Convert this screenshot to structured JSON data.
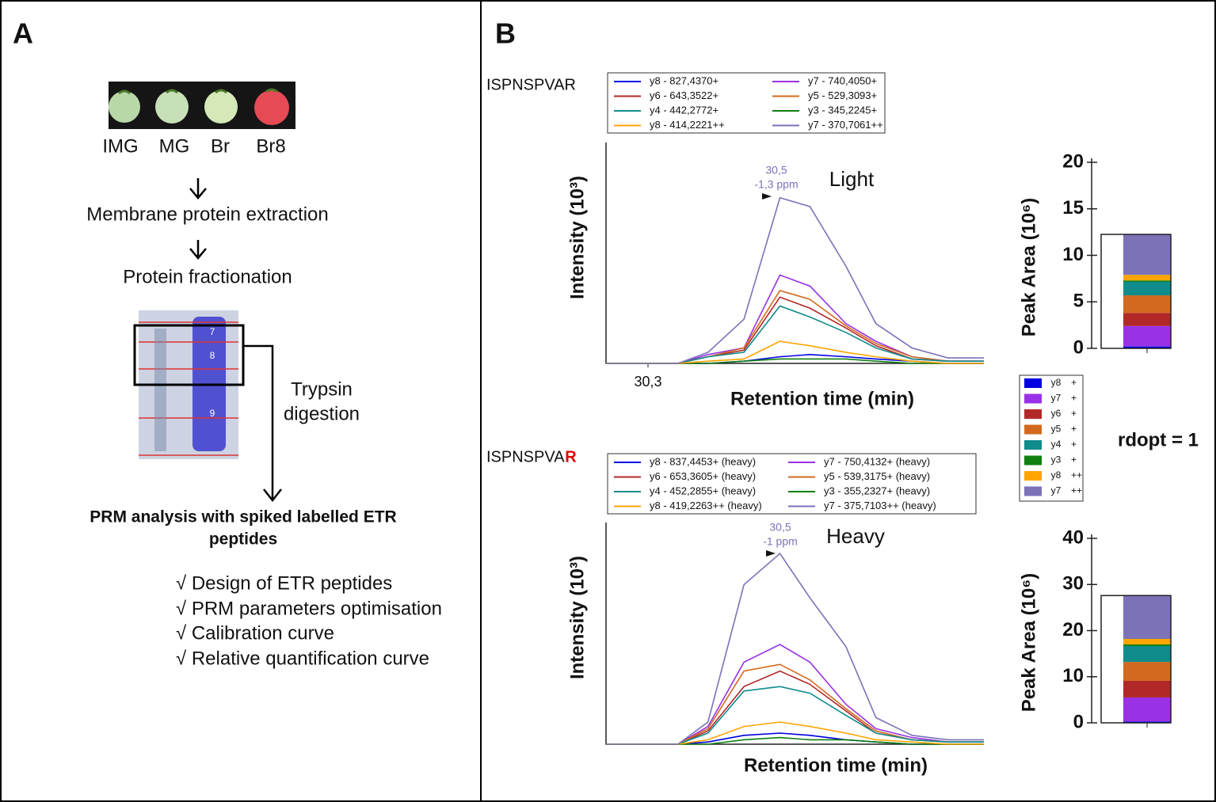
{
  "panel_a": {
    "label": "A",
    "fruit_labels": [
      "IMG",
      "MG",
      "Br",
      "Br8"
    ],
    "steps": [
      "Membrane  protein  extraction",
      "Protein  fractionation"
    ],
    "gel_lanes": [
      "7",
      "8",
      "9"
    ],
    "digestion": [
      "Trypsin",
      "digestion"
    ],
    "analysis": [
      "PRM analysis with spiked labelled ETR",
      "peptides"
    ],
    "checklist": [
      "√ Design of ETR  peptides",
      "√ PRM parameters  optimisation",
      "√ Calibration curve",
      "√ Relative  quantification  curve"
    ]
  },
  "panel_b": {
    "label": "B",
    "ion_legend": [
      {
        "ion": "y8",
        "charge": "+",
        "color": "#0000e0"
      },
      {
        "ion": "y7",
        "charge": "+",
        "color": "#9932e6"
      },
      {
        "ion": "y6",
        "charge": "+",
        "color": "#b22828"
      },
      {
        "ion": "y5",
        "charge": "+",
        "color": "#d2691e"
      },
      {
        "ion": "y4",
        "charge": "+",
        "color": "#108c8c"
      },
      {
        "ion": "y3",
        "charge": "+",
        "color": "#108010"
      },
      {
        "ion": "y8",
        "charge": "++",
        "color": "#ffa500"
      },
      {
        "ion": "y7",
        "charge": "++",
        "color": "#7b72b8"
      }
    ],
    "ratio": "rdopt = 1"
  },
  "chart_data": [
    {
      "type": "line",
      "title": "ISPNSPVAR",
      "annotation_rt": "30,5",
      "annotation_ppm": "-1,3 ppm",
      "annotation_label": "Light",
      "xlabel": "Retention time (min)",
      "ylabel": "Intensity (10³)",
      "x": [
        30.23,
        30.35,
        30.4,
        30.46,
        30.52,
        30.57,
        30.63,
        30.68,
        30.74,
        30.8,
        30.87
      ],
      "xlim": [
        30.23,
        30.86
      ],
      "xticks": [
        {
          "value": 30.3,
          "label": "30,3"
        }
      ],
      "ylim": [
        0,
        100
      ],
      "series": [
        {
          "name": "y8 - 827,4370+",
          "color": "#0000e0",
          "values": [
            0,
            0,
            0,
            1,
            3,
            4,
            3,
            2,
            1,
            0,
            0
          ]
        },
        {
          "name": "y7 - 740,4050+",
          "color": "#9932e6",
          "values": [
            0,
            0,
            4,
            7,
            40,
            35,
            18,
            10,
            3,
            1,
            1
          ]
        },
        {
          "name": "y6 - 643,3522+",
          "color": "#b22828",
          "values": [
            0,
            0,
            3,
            6,
            30,
            25,
            16,
            8,
            2,
            1,
            1
          ]
        },
        {
          "name": "y5 - 529,3093+",
          "color": "#d2691e",
          "values": [
            0,
            0,
            3,
            7,
            33,
            29,
            17,
            9,
            3,
            1,
            1
          ]
        },
        {
          "name": "y4 - 442,2772+",
          "color": "#108c8c",
          "values": [
            0,
            0,
            3,
            5,
            26,
            21,
            14,
            7,
            2,
            1,
            1
          ]
        },
        {
          "name": "y3 - 345,2245+",
          "color": "#108010",
          "values": [
            0,
            0,
            0,
            1,
            2,
            2,
            2,
            1,
            0,
            0,
            0
          ]
        },
        {
          "name": "y8 - 414,2221++",
          "color": "#ffa500",
          "values": [
            0,
            0,
            1,
            2,
            10,
            8,
            5,
            3,
            1,
            0,
            0
          ]
        },
        {
          "name": "y7 - 370,7061++",
          "color": "#7b72b8",
          "values": [
            0,
            0,
            5,
            20,
            75,
            71,
            44,
            18,
            7,
            2.5,
            2.5
          ]
        }
      ]
    },
    {
      "type": "bar",
      "ylabel": "Peak Area (10⁶)",
      "ylim": [
        0,
        20
      ],
      "yticks": [
        0,
        5,
        10,
        15,
        20
      ],
      "series": [
        {
          "color": "#0000e0",
          "values": [
            0.2
          ]
        },
        {
          "color": "#9932e6",
          "values": [
            2.2
          ]
        },
        {
          "color": "#b22828",
          "values": [
            1.4
          ]
        },
        {
          "color": "#d2691e",
          "values": [
            1.9
          ]
        },
        {
          "color": "#108c8c",
          "values": [
            1.45
          ]
        },
        {
          "color": "#108010",
          "values": [
            0.15
          ]
        },
        {
          "color": "#ffa500",
          "values": [
            0.6
          ]
        },
        {
          "color": "#7b72b8",
          "values": [
            4.35
          ]
        }
      ]
    },
    {
      "type": "line",
      "title": "ISPNSPVA",
      "title_suffix": "R",
      "annotation_rt": "30,5",
      "annotation_ppm": "-1 ppm",
      "annotation_label": "Heavy",
      "xlabel": "Retention time (min)",
      "ylabel": "Intensity (10³)",
      "x": [
        30.23,
        30.35,
        30.4,
        30.46,
        30.52,
        30.57,
        30.63,
        30.68,
        30.74,
        30.8,
        30.87
      ],
      "xlim": [
        30.23,
        30.86
      ],
      "ylim": [
        0,
        100
      ],
      "series": [
        {
          "name": "y8 - 837,4453+ (heavy)",
          "color": "#0000e0",
          "values": [
            0,
            0,
            1,
            4,
            5,
            4,
            2,
            1,
            0,
            0,
            0
          ]
        },
        {
          "name": "y7 - 750,4132+ (heavy)",
          "color": "#9932e6",
          "values": [
            0,
            0,
            8,
            37,
            45,
            37,
            18,
            7,
            3,
            1,
            1
          ]
        },
        {
          "name": "y6 - 653,3605+ (heavy)",
          "color": "#b22828",
          "values": [
            0,
            0,
            6,
            26,
            33,
            27,
            15,
            5,
            2,
            1,
            1
          ]
        },
        {
          "name": "y5 - 539,3175+ (heavy)",
          "color": "#d2691e",
          "values": [
            0,
            0,
            7,
            33,
            36,
            29,
            16,
            6,
            2,
            1,
            1
          ]
        },
        {
          "name": "y4 - 452,2855+ (heavy)",
          "color": "#108c8c",
          "values": [
            0,
            0,
            5,
            24,
            26,
            23,
            13,
            5,
            2,
            1,
            1
          ]
        },
        {
          "name": "y3 - 355,2327+ (heavy)",
          "color": "#108010",
          "values": [
            0,
            0,
            0,
            2,
            3,
            2,
            2,
            1,
            0,
            0,
            0
          ]
        },
        {
          "name": "y8 - 419,2263++ (heavy)",
          "color": "#ffa500",
          "values": [
            0,
            0,
            2,
            8,
            10,
            8,
            5,
            2,
            1,
            0,
            0
          ]
        },
        {
          "name": "y7 - 375,7103++ (heavy)",
          "color": "#7b72b8",
          "values": [
            0,
            0,
            10,
            72,
            86,
            66,
            44,
            12,
            4,
            2,
            2
          ]
        }
      ]
    },
    {
      "type": "bar",
      "ylabel": "Peak Area (10⁶)",
      "ylim": [
        0,
        40
      ],
      "yticks": [
        0,
        10,
        20,
        30,
        40
      ],
      "series": [
        {
          "color": "#0000e0",
          "values": [
            0.3
          ]
        },
        {
          "color": "#9932e6",
          "values": [
            5.2
          ]
        },
        {
          "color": "#b22828",
          "values": [
            3.6
          ]
        },
        {
          "color": "#d2691e",
          "values": [
            4.1
          ]
        },
        {
          "color": "#108c8c",
          "values": [
            3.45
          ]
        },
        {
          "color": "#108010",
          "values": [
            0.35
          ]
        },
        {
          "color": "#ffa500",
          "values": [
            1.2
          ]
        },
        {
          "color": "#7b72b8",
          "values": [
            9.4
          ]
        }
      ]
    }
  ]
}
